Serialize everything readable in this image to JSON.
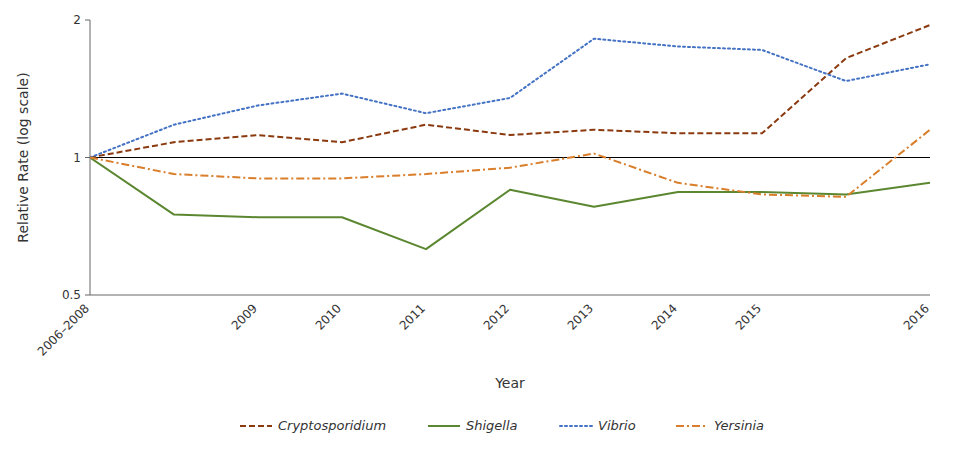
{
  "chart_data": {
    "type": "line",
    "categories": [
      "2006–2008",
      null,
      "2009",
      "2010",
      "2011",
      "2012",
      "2013",
      "2014",
      "2015",
      null,
      "2016"
    ],
    "series": [
      {
        "name": "Cryptosporidium",
        "color": "#8B3A0F",
        "line_style": "dashed",
        "values": [
          1.0,
          1.08,
          1.12,
          1.08,
          1.18,
          1.12,
          1.15,
          1.13,
          1.13,
          1.65,
          1.95
        ]
      },
      {
        "name": "Shigella",
        "color": "#5B8731",
        "line_style": "solid",
        "values": [
          1.0,
          0.75,
          0.74,
          0.74,
          0.63,
          0.85,
          0.78,
          0.84,
          0.84,
          0.83,
          0.88
        ]
      },
      {
        "name": "Vibrio",
        "color": "#4472C4",
        "line_style": "dotted",
        "values": [
          1.0,
          1.18,
          1.3,
          1.38,
          1.25,
          1.35,
          1.82,
          1.75,
          1.72,
          1.47,
          1.6
        ]
      },
      {
        "name": "Yersinia",
        "color": "#D97E2A",
        "line_style": "dashdot",
        "values": [
          1.0,
          0.92,
          0.9,
          0.9,
          0.92,
          0.95,
          1.02,
          0.88,
          0.83,
          0.82,
          1.15
        ]
      }
    ],
    "reference_line": 1,
    "xlabel": "Year",
    "ylabel": "Relative Rate (log scale)",
    "log": "y",
    "ylim": [
      0.5,
      2
    ],
    "yticks": [
      0.5,
      1,
      2
    ],
    "grid": false,
    "legend": "bottom"
  }
}
